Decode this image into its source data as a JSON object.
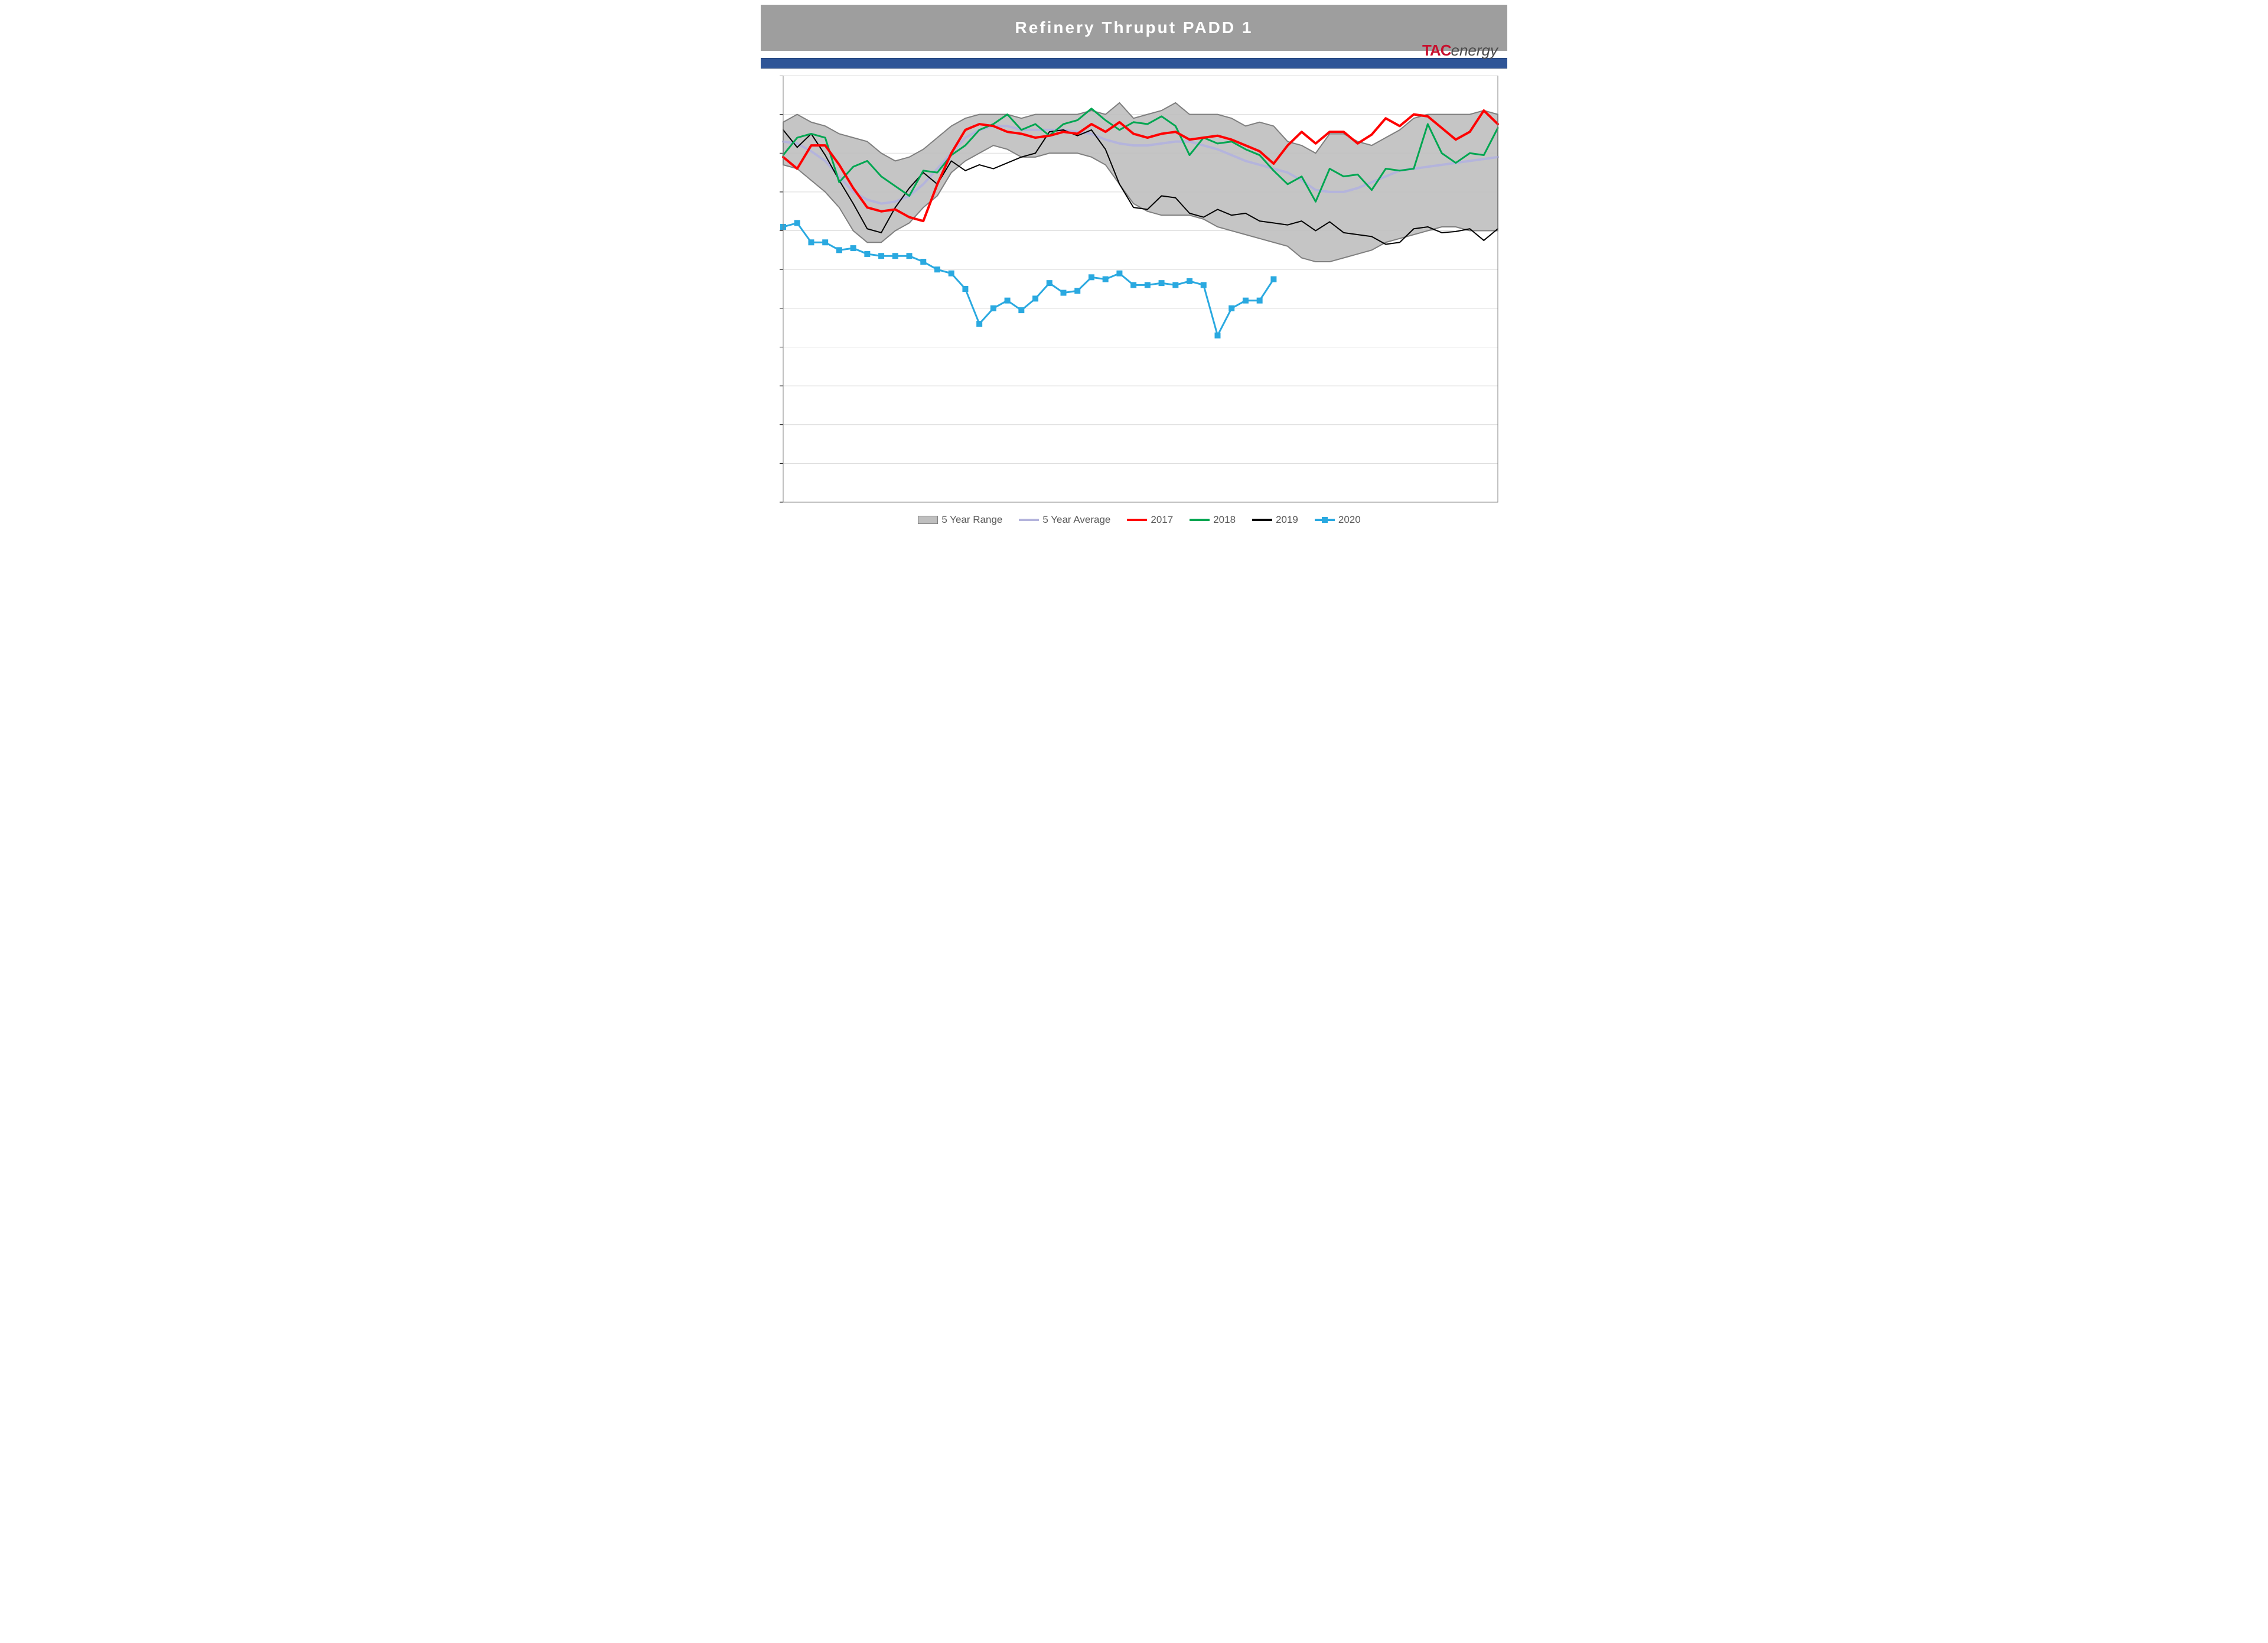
{
  "title": "Refinery Thruput PADD 1",
  "logo": {
    "tac": "TAC",
    "energy": "energy"
  },
  "colors": {
    "header_bg": "#9e9e9e",
    "title_text": "#ffffff",
    "blue_stripe": "#2f5597",
    "plot_border": "#808080",
    "grid": "#d9d9d9",
    "range_fill": "#bfbfbf",
    "range_stroke": "#7f7f7f",
    "avg": "#b4b4dc",
    "s2017": "#ff0000",
    "s2018": "#00a651",
    "s2019": "#000000",
    "s2020_line": "#2aa9e0",
    "s2020_marker": "#2aa9e0",
    "legend_text": "#595959"
  },
  "legend": {
    "range": "5 Year Range",
    "avg": "5 Year Average",
    "s2017": "2017",
    "s2018": "2018",
    "s2019": "2019",
    "s2020": "2020"
  },
  "chart": {
    "type": "line_with_range_band",
    "x_count": 52,
    "ylim": [
      200,
      1300
    ],
    "ytick_step": 100,
    "title_fontsize": 28,
    "legend_fontsize": 17,
    "line_widths": {
      "range": 2,
      "avg": 4,
      "s2017": 4,
      "s2018": 3,
      "s2019": 2,
      "s2020": 3
    },
    "marker_size_2020": 9,
    "range_upper": [
      1180,
      1200,
      1180,
      1170,
      1150,
      1140,
      1130,
      1100,
      1080,
      1090,
      1110,
      1140,
      1170,
      1190,
      1200,
      1200,
      1200,
      1190,
      1200,
      1200,
      1200,
      1200,
      1210,
      1200,
      1230,
      1190,
      1200,
      1210,
      1230,
      1200,
      1200,
      1200,
      1190,
      1170,
      1180,
      1170,
      1130,
      1120,
      1100,
      1150,
      1150,
      1130,
      1120,
      1140,
      1160,
      1190,
      1200,
      1200,
      1200,
      1200,
      1210,
      1200
    ],
    "range_lower": [
      1070,
      1060,
      1030,
      1000,
      960,
      900,
      870,
      870,
      900,
      920,
      960,
      990,
      1050,
      1080,
      1100,
      1120,
      1110,
      1090,
      1090,
      1100,
      1100,
      1100,
      1090,
      1070,
      1020,
      970,
      950,
      940,
      940,
      940,
      930,
      910,
      900,
      890,
      880,
      870,
      860,
      830,
      820,
      820,
      830,
      840,
      850,
      870,
      880,
      890,
      900,
      910,
      910,
      900,
      900,
      900
    ],
    "avg": [
      1130,
      1125,
      1105,
      1080,
      1040,
      1000,
      980,
      970,
      975,
      990,
      1020,
      1060,
      1100,
      1140,
      1160,
      1170,
      1170,
      1160,
      1160,
      1160,
      1160,
      1155,
      1150,
      1135,
      1125,
      1120,
      1120,
      1125,
      1130,
      1130,
      1120,
      1110,
      1095,
      1080,
      1070,
      1060,
      1050,
      1030,
      1005,
      1000,
      1000,
      1010,
      1025,
      1040,
      1055,
      1060,
      1065,
      1070,
      1075,
      1080,
      1085,
      1090
    ],
    "s2017": [
      1090,
      1060,
      1120,
      1120,
      1070,
      1010,
      960,
      950,
      955,
      935,
      925,
      1020,
      1100,
      1160,
      1175,
      1170,
      1155,
      1150,
      1140,
      1145,
      1155,
      1150,
      1175,
      1155,
      1180,
      1150,
      1140,
      1150,
      1155,
      1135,
      1140,
      1145,
      1135,
      1120,
      1105,
      1073,
      1120,
      1155,
      1125,
      1155,
      1155,
      1125,
      1148,
      1190,
      1170,
      1200,
      1195,
      1165,
      1135,
      1155,
      1210,
      1175
    ],
    "s2018": [
      1095,
      1140,
      1150,
      1140,
      1025,
      1065,
      1080,
      1040,
      1015,
      990,
      1055,
      1050,
      1095,
      1120,
      1160,
      1175,
      1200,
      1160,
      1175,
      1145,
      1175,
      1185,
      1215,
      1185,
      1160,
      1180,
      1175,
      1195,
      1170,
      1095,
      1140,
      1125,
      1130,
      1110,
      1095,
      1055,
      1020,
      1040,
      975,
      1060,
      1040,
      1045,
      1005,
      1060,
      1055,
      1060,
      1175,
      1100,
      1075,
      1100,
      1095,
      1165
    ],
    "s2019": [
      1160,
      1115,
      1150,
      1095,
      1030,
      970,
      905,
      895,
      960,
      1010,
      1050,
      1020,
      1080,
      1055,
      1070,
      1060,
      1075,
      1090,
      1100,
      1155,
      1160,
      1145,
      1160,
      1110,
      1020,
      960,
      955,
      990,
      985,
      945,
      935,
      955,
      940,
      945,
      925,
      920,
      915,
      925,
      900,
      923,
      895,
      890,
      885,
      865,
      870,
      905,
      910,
      895,
      898,
      905,
      875,
      905
    ],
    "s2020": [
      910,
      920,
      870,
      870,
      850,
      855,
      840,
      835,
      835,
      835,
      820,
      800,
      790,
      750,
      660,
      700,
      720,
      695,
      725,
      765,
      740,
      745,
      780,
      775,
      790,
      760,
      760,
      765,
      760,
      770,
      760,
      630,
      700,
      720,
      720,
      775
    ]
  }
}
